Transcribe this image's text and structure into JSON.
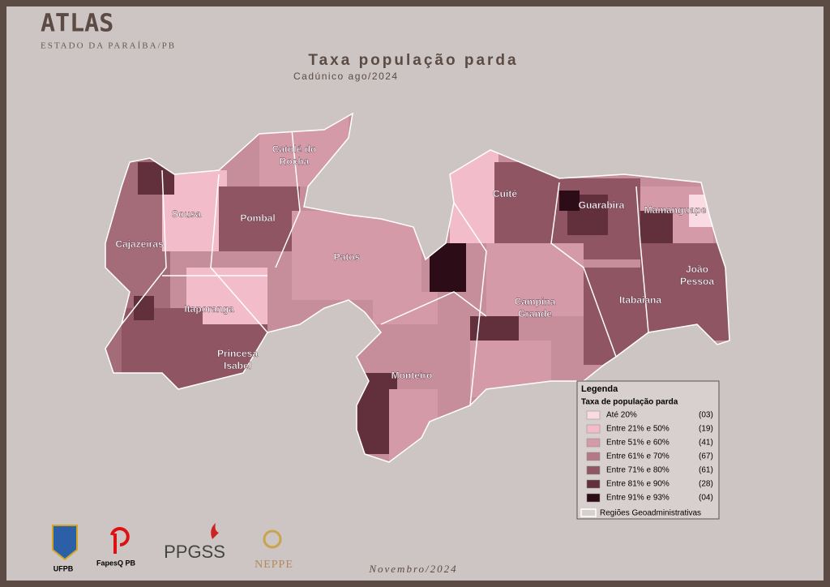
{
  "header": {
    "title": "ATLAS",
    "subtitle": "ESTADO DA PARAÍBA/PB"
  },
  "map": {
    "title": "Taxa população parda",
    "subtitle": "Cadúnico ago/2024",
    "regions": [
      "Catolé do Rocha",
      "Sousa",
      "Pombal",
      "Cajazeiras",
      "Patos",
      "Itaporanga",
      "Princesa Isabel",
      "Cuité",
      "Guarabira",
      "Mamanguape",
      "João Pessoa",
      "Campina Grande",
      "Itabaiana",
      "Monteiro"
    ]
  },
  "legend": {
    "title": "Legenda",
    "subtitle": "Taxa de população parda",
    "items": [
      {
        "label": "Até 20%",
        "count": "(03)"
      },
      {
        "label": "Entre 21% e 50%",
        "count": "(19)"
      },
      {
        "label": "Entre 51% e 60%",
        "count": "(41)"
      },
      {
        "label": "Entre 61% e 70%",
        "count": "(67)"
      },
      {
        "label": "Entre 71% e 80%",
        "count": "(61)"
      },
      {
        "label": "Entre 81% e 90%",
        "count": "(28)"
      },
      {
        "label": "Entre 91% e 93%",
        "count": "(04)"
      }
    ],
    "boundary": "Regiões Geoadministrativas"
  },
  "logos": [
    "UFPB",
    "FapesQ PB",
    "PPGSS",
    "NEPPE"
  ],
  "footer": "Novembro/2024"
}
